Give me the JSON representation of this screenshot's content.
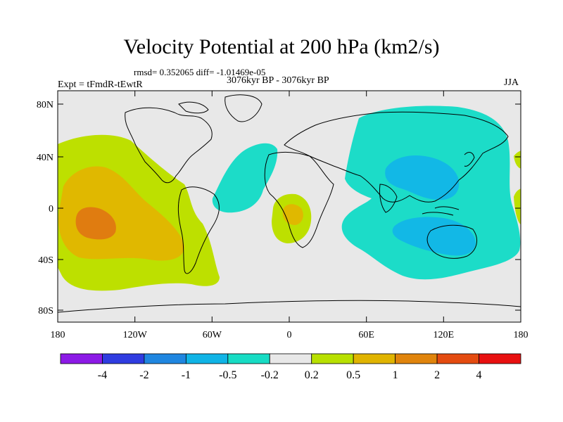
{
  "title": "Velocity Potential at 200 hPa (km2/s)",
  "stats_line": "rmsd= 0.352065 diff= -1.01469e-05",
  "period_line": "3076kyr BP - 3076kyr BP",
  "experiment": "Expt = tFmdR-tEwtR",
  "season": "JJA",
  "axes": {
    "lat_ticks": [
      "80N",
      "40N",
      "0",
      "40S",
      "80S"
    ],
    "lon_ticks": [
      "180",
      "120W",
      "60W",
      "0",
      "60E",
      "120E",
      "180"
    ]
  },
  "colorbar": {
    "labels": [
      "-4",
      "-2",
      "-1",
      "-0.5",
      "-0.2",
      "0.2",
      "0.5",
      "1",
      "2",
      "4"
    ],
    "colors": [
      "#8c1ae6",
      "#2f3ce0",
      "#1f86e0",
      "#10b4e6",
      "#17dcc4",
      "#e8e8e8",
      "#b8e000",
      "#e0b400",
      "#e0840c",
      "#e44b10",
      "#e81010"
    ]
  },
  "map_colors": {
    "ocean_background": "#e8e8e8",
    "level_neg_0_2": "#1cdcc8",
    "level_neg_0_5": "#12b8e6",
    "level_pos_0_2": "#bde000",
    "level_pos_0_5": "#e0b800",
    "level_pos_1": "#e07c10",
    "coast": "#000000"
  }
}
